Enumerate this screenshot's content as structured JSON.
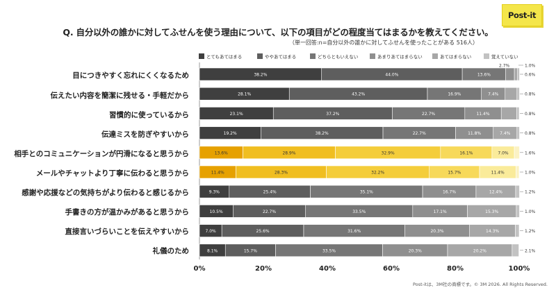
{
  "title": "Q. 自分以外の誰かに対してふせんを使う理由について、以下の項目がどの程度当てはまるかを教えてください。",
  "subtitle": "（単一回答:n=自分以外の誰かに対してふせんを使ったことがある 516人）",
  "logo": "Post-it",
  "footer": "Post-itは、3M社の商標です。© 3M 2026. All Rights Reserved.",
  "legend": [
    "とてもあてはまる",
    "ややあてはまる",
    "どちらともいえない",
    "あまりあてはまらない",
    "あてはまらない",
    "覚えていない"
  ],
  "colors": {
    "gray": [
      "#3f3f3f",
      "#5e5e5e",
      "#767676",
      "#8f8f8f",
      "#a7a7a7",
      "#c2c2c2"
    ],
    "yellow": [
      "#e6a100",
      "#f0be20",
      "#f4cd3a",
      "#f7d95a",
      "#faeb9a",
      "#fbf2c4"
    ]
  },
  "chart_data": {
    "type": "bar",
    "orientation": "horizontal",
    "stacked": true,
    "xlim": [
      0,
      100
    ],
    "x_ticks": [
      "0%",
      "20%",
      "40%",
      "60%",
      "80%",
      "100%"
    ],
    "categories": [
      "目につきやすく忘れにくくなるため",
      "伝えたい内容を簡潔に残せる・手軽だから",
      "習慣的に使っているから",
      "伝達ミスを防ぎやすいから",
      "相手とのコミュニケーションが円滑になると思うから",
      "メールやチャットより丁寧に伝わると思うから",
      "感謝や応援などの気持ちがより伝わると感じるから",
      "手書きの方が温かみがあると思うから",
      "直接言いづらいことを伝えやすいから",
      "礼儀のため"
    ],
    "highlighted": [
      4,
      5
    ],
    "series": [
      {
        "name": "とてもあてはまる",
        "values": [
          38.2,
          28.1,
          23.1,
          19.2,
          13.6,
          11.4,
          9.3,
          10.5,
          7.0,
          8.1
        ]
      },
      {
        "name": "ややあてはまる",
        "values": [
          44.0,
          43.2,
          37.2,
          38.2,
          28.9,
          28.3,
          25.4,
          22.7,
          25.6,
          15.7
        ]
      },
      {
        "name": "どちらともいえない",
        "values": [
          13.6,
          16.9,
          22.7,
          22.7,
          32.9,
          32.2,
          35.1,
          33.5,
          31.6,
          33.5
        ]
      },
      {
        "name": "あまりあてはまらない",
        "values": [
          2.7,
          7.4,
          11.4,
          11.8,
          16.1,
          15.7,
          16.7,
          17.1,
          20.3,
          20.3
        ]
      },
      {
        "name": "あてはまらない",
        "values": [
          1.0,
          3.7,
          4.8,
          7.4,
          7.0,
          11.4,
          12.4,
          15.3,
          14.3,
          20.2
        ]
      },
      {
        "name": "覚えていない",
        "values": [
          0.6,
          0.8,
          0.8,
          0.8,
          1.6,
          1.0,
          1.2,
          1.0,
          1.2,
          2.1
        ]
      }
    ]
  }
}
